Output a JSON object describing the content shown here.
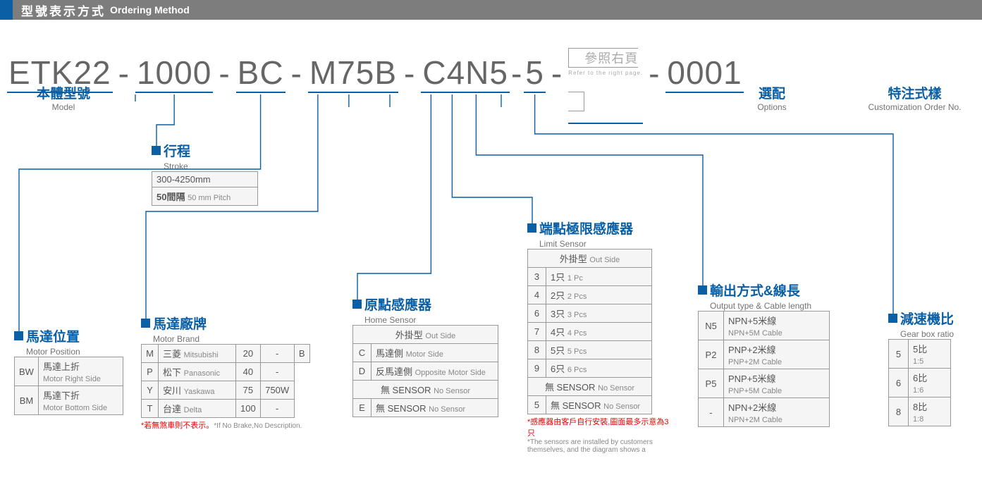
{
  "header": {
    "zh": "型號表示方式",
    "en": "Ordering Method"
  },
  "code": {
    "segs": [
      "ETK22",
      "1000",
      "BC",
      "M75B",
      "C4N5",
      "5"
    ],
    "seg7": {
      "zh": "參照右頁",
      "en": "Refer to the right page."
    },
    "seg8": "0001"
  },
  "labels": {
    "model": {
      "zh": "本體型號",
      "en": "Model"
    },
    "options": {
      "zh": "選配",
      "en": "Options"
    },
    "custom": {
      "zh": "特注式樣",
      "en": "Customization Order No."
    }
  },
  "stroke": {
    "title_zh": "行程",
    "title_en": "Stroke",
    "rows": [
      {
        "v": "300-4250mm"
      },
      {
        "v": "50間隔",
        "sub": "50 mm Pitch"
      }
    ]
  },
  "motorPosition": {
    "title_zh": "馬達位置",
    "title_en": "Motor Position",
    "rows": [
      {
        "c": "BW",
        "zh": "馬達上折",
        "en": "Motor Right Side"
      },
      {
        "c": "BM",
        "zh": "馬達下折",
        "en": "Motor Bottom Side"
      }
    ]
  },
  "motorBrand": {
    "title_zh": "馬達廠牌",
    "title_en": "Motor Brand",
    "codes": [
      "M",
      "P",
      "Y",
      "T"
    ],
    "names_zh": [
      "三菱",
      "松下",
      "安川",
      "台達"
    ],
    "names_en": [
      "Mitsubishi",
      "Panasonic",
      "Yaskawa",
      "Delta"
    ],
    "watt_codes": [
      "20",
      "40",
      "75",
      "100"
    ],
    "watt_vals": [
      "-",
      "-",
      "750W",
      "-"
    ],
    "brake_codes": [
      "B"
    ],
    "note_zh": "*若無煞車則不表示。",
    "note_en": "*If No Brake,No Description."
  },
  "homeSensor": {
    "title_zh": "原點感應器",
    "title_en": "Home Sensor",
    "section1_zh": "外掛型",
    "section1_en": "Out Side",
    "rows1": [
      {
        "c": "C",
        "zh": "馬達側",
        "en": "Motor Side"
      },
      {
        "c": "D",
        "zh": "反馬達側",
        "en": "Opposite Motor Side"
      }
    ],
    "section2_zh": "無 SENSOR",
    "section2_en": "No Sensor",
    "rows2": [
      {
        "c": "E",
        "zh": "無 SENSOR",
        "en": "No Sensor"
      }
    ]
  },
  "limitSensor": {
    "title_zh": "端點極限感應器",
    "title_en": "Limit Sensor",
    "section1_zh": "外掛型",
    "section1_en": "Out Side",
    "rows1": [
      {
        "c": "3",
        "zh": "1只",
        "en": "1 Pc"
      },
      {
        "c": "4",
        "zh": "2只",
        "en": "2 Pcs"
      },
      {
        "c": "6",
        "zh": "3只",
        "en": "3 Pcs"
      },
      {
        "c": "7",
        "zh": "4只",
        "en": "4 Pcs"
      },
      {
        "c": "8",
        "zh": "5只",
        "en": "5 Pcs"
      },
      {
        "c": "9",
        "zh": "6只",
        "en": "6 Pcs"
      }
    ],
    "section2_zh": "無 SENSOR",
    "section2_en": "No Sensor",
    "rows2": [
      {
        "c": "5",
        "zh": "無 SENSOR",
        "en": "No Sensor"
      }
    ],
    "note_zh": "*感應器由客戶自行安裝,圖面最多示意為3只",
    "note_en": "*The sensors are installed by customers themselves, and the diagram shows a"
  },
  "output": {
    "title_zh": "輸出方式&線長",
    "title_en": "Output type & Cable length",
    "rows": [
      {
        "c": "N5",
        "zh": "NPN+5米線",
        "en": "NPN+5M Cable"
      },
      {
        "c": "P2",
        "zh": "PNP+2米線",
        "en": "PNP+2M Cable"
      },
      {
        "c": "P5",
        "zh": "PNP+5米線",
        "en": "PNP+5M Cable"
      },
      {
        "c": "-",
        "zh": "NPN+2米線",
        "en": "NPN+2M Cable"
      }
    ]
  },
  "gearbox": {
    "title_zh": "減速機比",
    "title_en": "Gear box ratio",
    "rows": [
      {
        "c": "5",
        "zh": "5比",
        "en": "1:5"
      },
      {
        "c": "6",
        "zh": "6比",
        "en": "1:6"
      },
      {
        "c": "8",
        "zh": "8比",
        "en": "1:8"
      }
    ]
  },
  "colors": {
    "accent": "#0a5fa5",
    "line": "#0a5fa5"
  }
}
